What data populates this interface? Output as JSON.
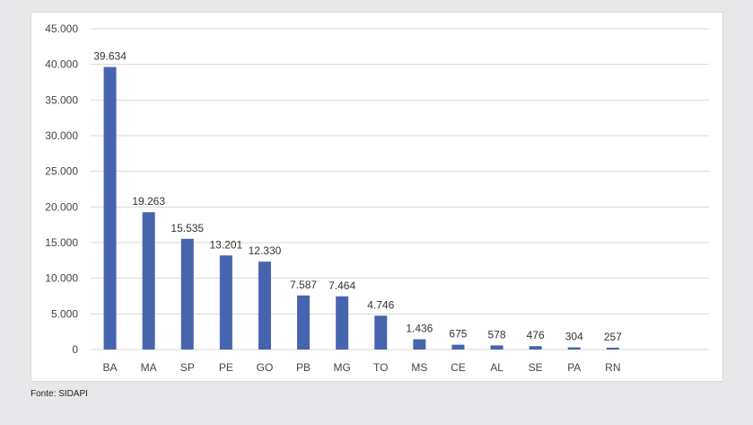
{
  "chart_data": {
    "type": "bar",
    "categories": [
      "BA",
      "MA",
      "SP",
      "PE",
      "GO",
      "PB",
      "MG",
      "TO",
      "MS",
      "CE",
      "AL",
      "SE",
      "PA",
      "RN"
    ],
    "values": [
      39634,
      19263,
      15535,
      13201,
      12330,
      7587,
      7464,
      4746,
      1436,
      675,
      578,
      476,
      304,
      257
    ],
    "value_labels": [
      "39.634",
      "19.263",
      "15.535",
      "13.201",
      "12.330",
      "7.587",
      "7.464",
      "4.746",
      "1.436",
      "675",
      "578",
      "476",
      "304",
      "257"
    ],
    "yticks": [
      0,
      5000,
      10000,
      15000,
      20000,
      25000,
      30000,
      35000,
      40000,
      45000
    ],
    "ytick_labels": [
      "0",
      "5.000",
      "10.000",
      "15.000",
      "20.000",
      "25.000",
      "30.000",
      "35.000",
      "40.000",
      "45.000"
    ],
    "ylim": [
      0,
      45000
    ],
    "grid": true,
    "legend": "none",
    "bar_color": "#4765ae",
    "grid_color": "#d9d9d9"
  },
  "source_note": "Fonte: SIDAPI"
}
